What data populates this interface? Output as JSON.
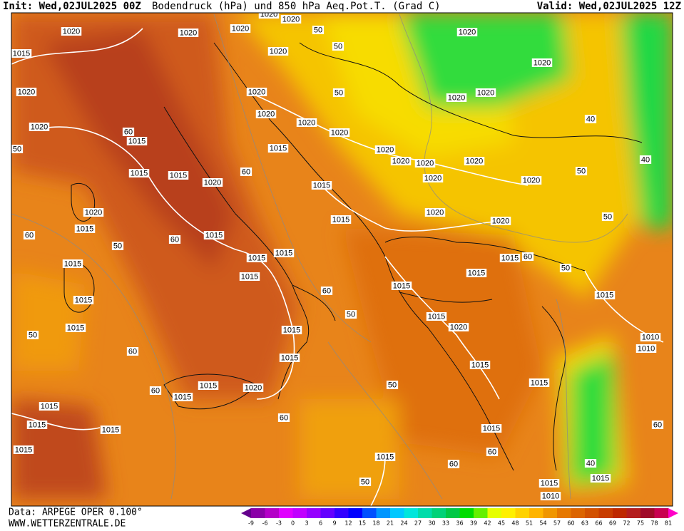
{
  "header": {
    "init": "Init: Wed,02JUL2025 00Z",
    "title": "Bodendruck (hPa) und 850 hPa Aeq.Pot.T. (Grad C)",
    "valid": "Valid: Wed,02JUL2025 12Z"
  },
  "footer": {
    "data": "Data: ARPEGE OPER 0.100°",
    "site": "WWW.WETTERZENTRALE.DE"
  },
  "colorbar": {
    "ticks": [
      -9,
      -6,
      -3,
      0,
      3,
      6,
      9,
      12,
      15,
      18,
      21,
      24,
      27,
      30,
      33,
      36,
      39,
      42,
      45,
      48,
      51,
      54,
      57,
      60,
      63,
      66,
      69,
      72,
      75,
      78,
      81
    ],
    "colors": [
      "#8a00a8",
      "#b400c8",
      "#e000ff",
      "#c000ff",
      "#9600ff",
      "#6400ff",
      "#3200ff",
      "#0000ff",
      "#0050ff",
      "#0096ff",
      "#00c8ff",
      "#00e6dc",
      "#00dcaa",
      "#00d278",
      "#00c846",
      "#00dc00",
      "#64f000",
      "#e6ff00",
      "#fff000",
      "#ffd200",
      "#ffb400",
      "#f09600",
      "#e67800",
      "#dc6400",
      "#d25000",
      "#c83c00",
      "#be2800",
      "#b41e1e",
      "#a00a28",
      "#c80050"
    ],
    "under_color": "#64008c",
    "over_color": "#ff00c8"
  },
  "map_labels": [
    "1015",
    "1020",
    "1020",
    "1020",
    "1020",
    "1020",
    "1020",
    "1020",
    "50",
    "50",
    "1020",
    "1020",
    "1020",
    "1020",
    "1020",
    "1020",
    "1015",
    "1015",
    "1015",
    "1015",
    "1020",
    "1020",
    "1015",
    "1015",
    "1015",
    "1015",
    "1015",
    "1015",
    "1015",
    "1015",
    "1015",
    "1015",
    "1020",
    "1020",
    "1020",
    "1020",
    "1020",
    "1020",
    "1020",
    "1015",
    "1015",
    "1015",
    "1015",
    "1020",
    "1015",
    "1015",
    "1015",
    "1010",
    "1010",
    "1015",
    "1015",
    "1015",
    "1015",
    "1020",
    "1015",
    "1015",
    "1015",
    "1015",
    "1015",
    "1015",
    "1015",
    "1015",
    "1010",
    "1020",
    "1020",
    "1020",
    "1020",
    "50",
    "60",
    "60",
    "60",
    "60",
    "50",
    "50",
    "50",
    "60",
    "60",
    "50",
    "40",
    "40",
    "40",
    "50",
    "50",
    "60",
    "50",
    "60",
    "60",
    "50",
    "60",
    "60",
    "50",
    "60"
  ]
}
